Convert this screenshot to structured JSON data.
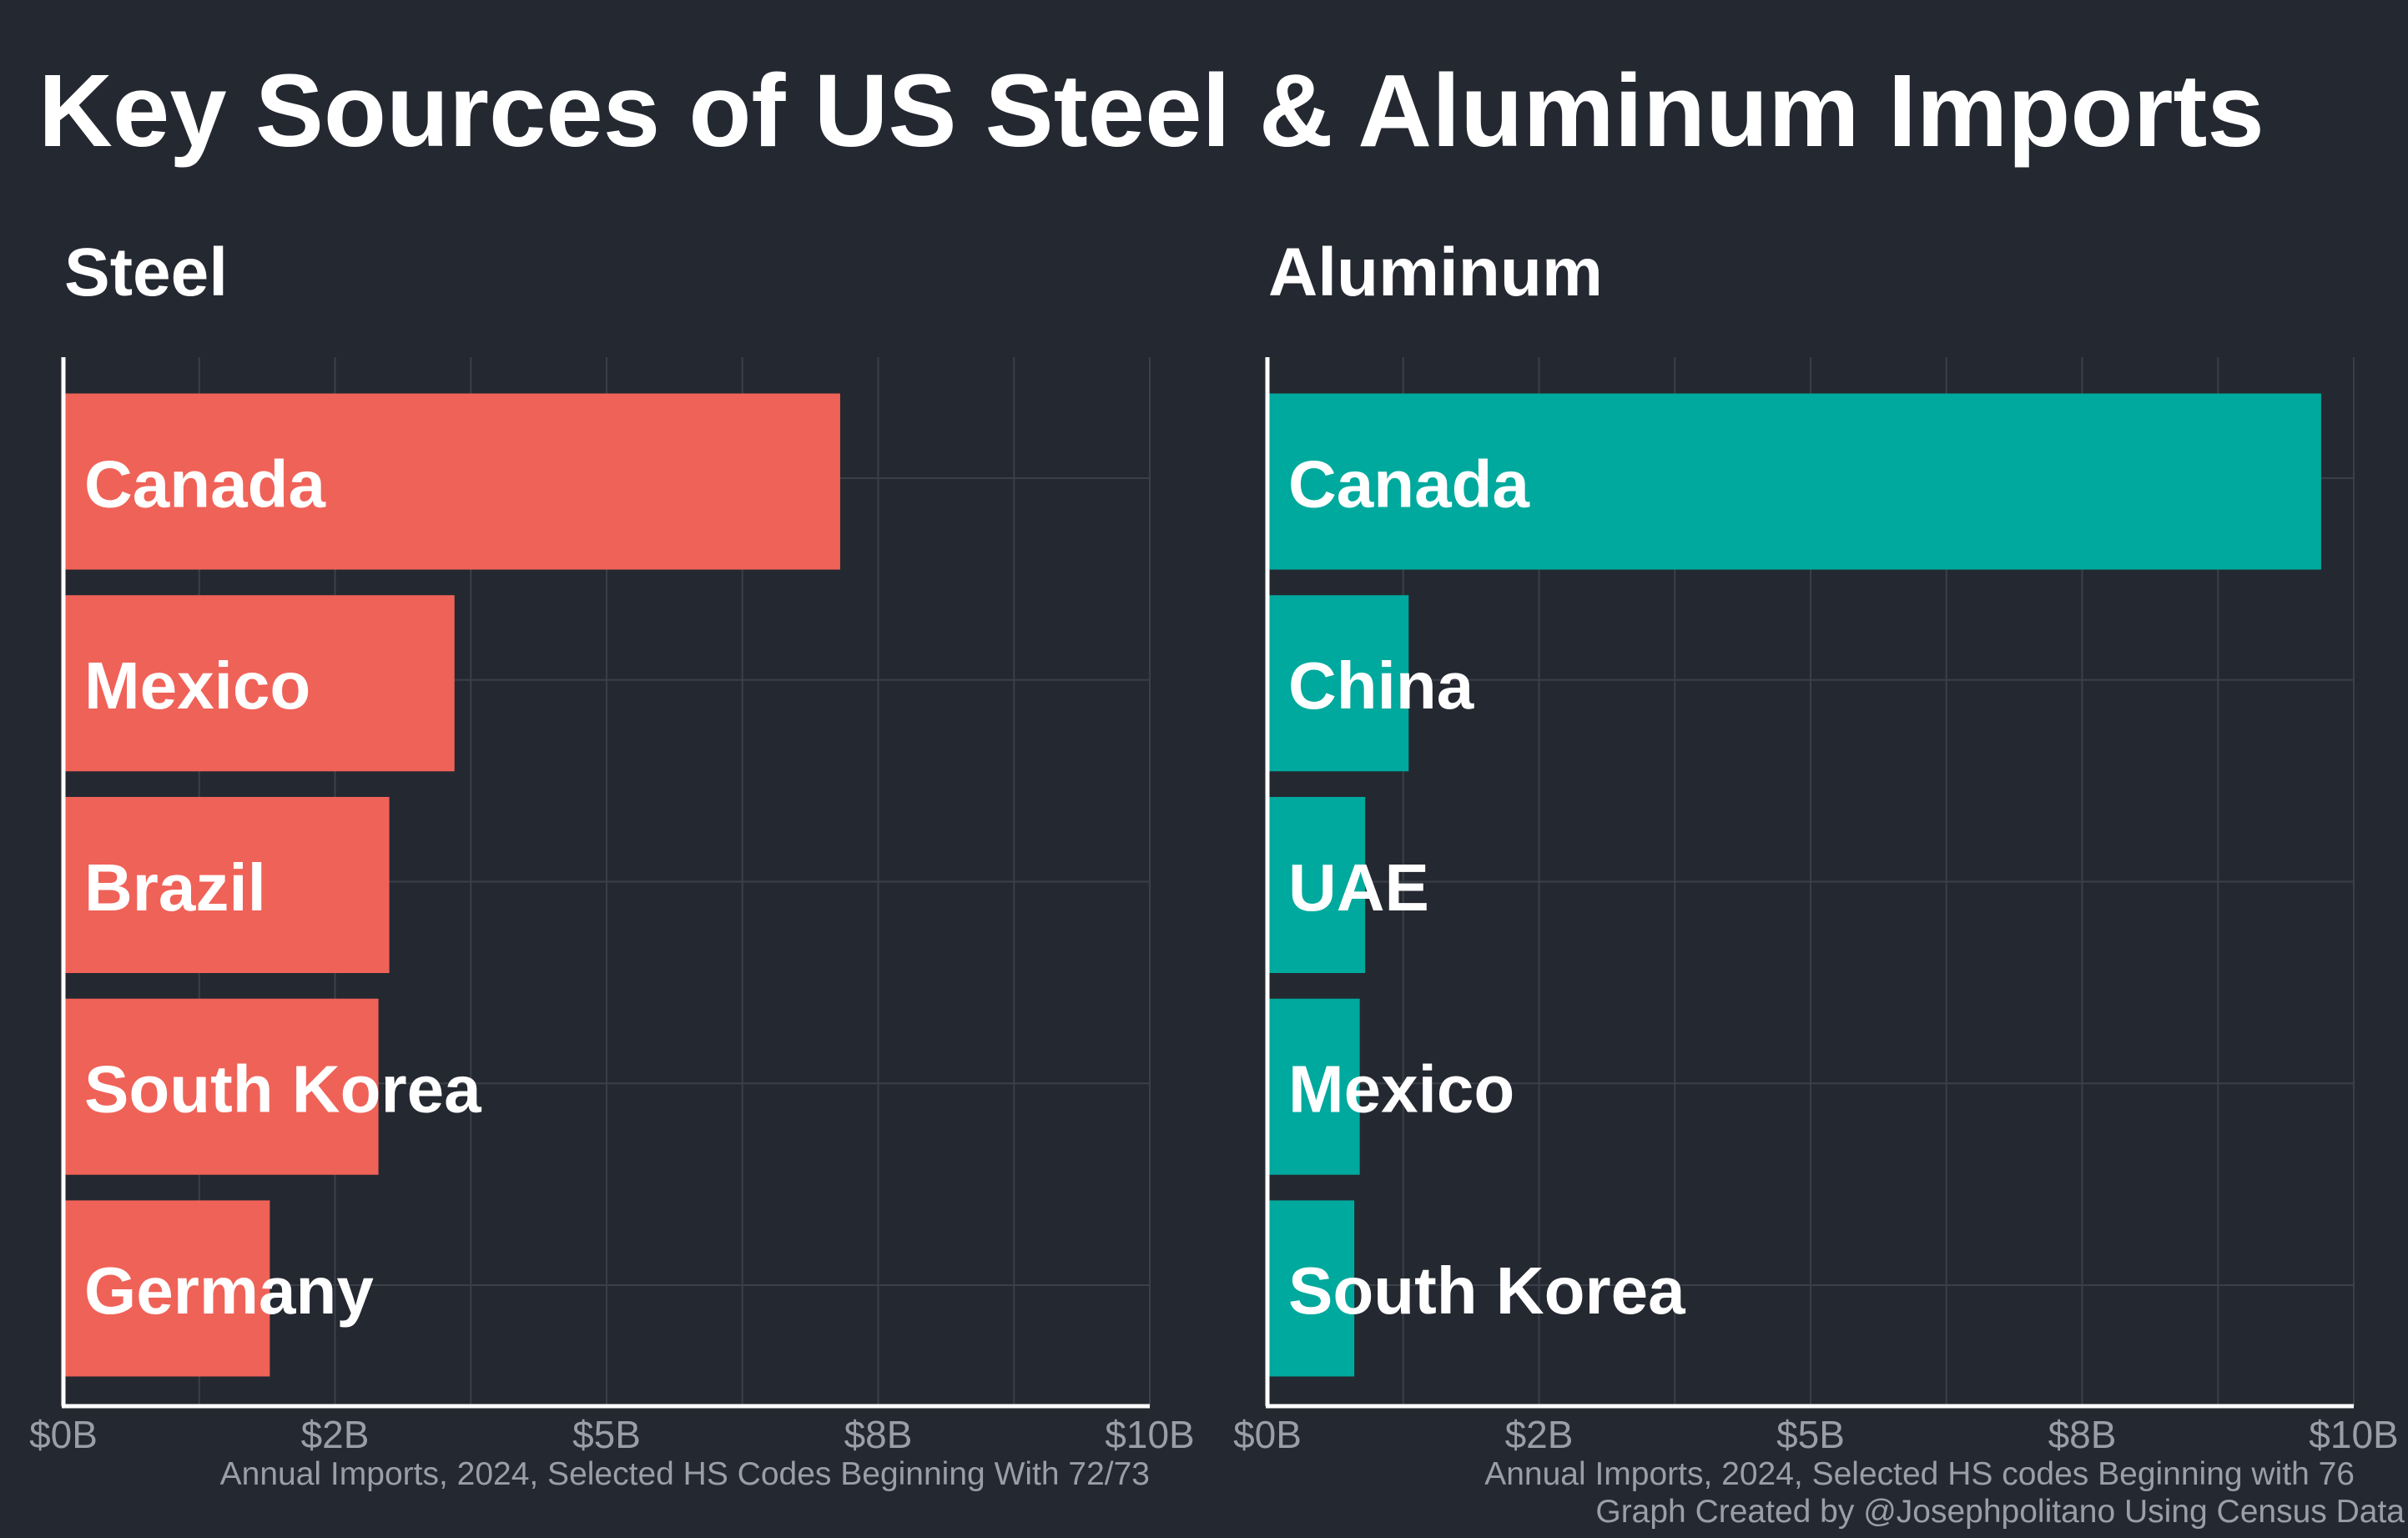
{
  "title": "Key Sources of US Steel & Aluminum Imports",
  "colors": {
    "background": "#242831",
    "steel": "#ef6258",
    "aluminum": "#00a99d",
    "grid": "#3b3f48",
    "axis": "#ffffff",
    "tick_text": "#9a9ea6"
  },
  "chart_data": [
    {
      "type": "bar",
      "orientation": "horizontal",
      "title": "Steel",
      "categories": [
        "Canada",
        "Mexico",
        "Brazil",
        "South Korea",
        "Germany"
      ],
      "values": [
        7.15,
        3.6,
        3.0,
        2.9,
        1.9
      ],
      "xlim": [
        0,
        10
      ],
      "xticks": [
        "$0B",
        "$2B",
        "$5B",
        "$8B",
        "$10B"
      ],
      "xlabel": "Annual Imports, 2024, Selected HS Codes Beginning With 72/73",
      "color": "#ef6258",
      "grid": true
    },
    {
      "type": "bar",
      "orientation": "horizontal",
      "title": "Aluminum",
      "categories": [
        "Canada",
        "China",
        "UAE",
        "Mexico",
        "South Korea"
      ],
      "values": [
        9.7,
        1.3,
        0.9,
        0.85,
        0.8
      ],
      "xlim": [
        0,
        10
      ],
      "xticks": [
        "$0B",
        "$2B",
        "$5B",
        "$8B",
        "$10B"
      ],
      "xlabel": "Annual Imports, 2024, Selected HS codes Beginning with 76",
      "color": "#00a99d",
      "grid": true
    }
  ],
  "source_caption": "Graph Created by @Josephpolitano Using Census Data"
}
